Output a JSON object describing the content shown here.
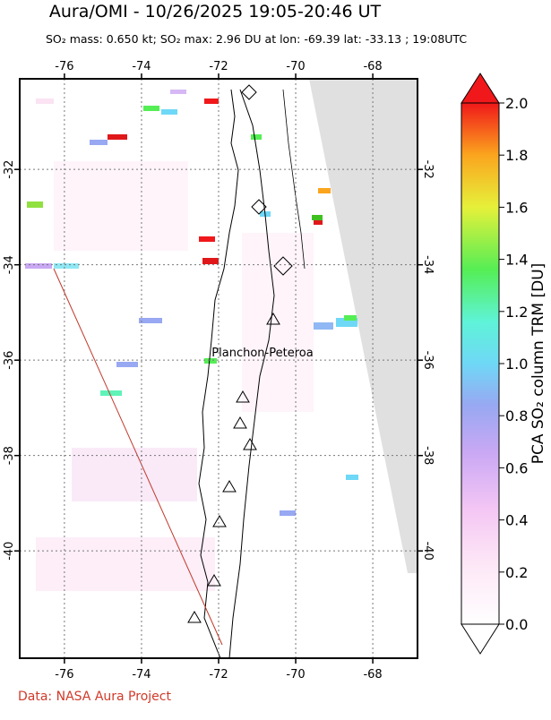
{
  "title": "Aura/OMI - 10/26/2025 19:05-20:46 UT",
  "subtitle": "SO₂ mass: 0.650 kt; SO₂ max: 2.96 DU at lon: -69.39 lat: -33.13 ; 19:08UTC",
  "axes": {
    "xlim": [
      -77.16,
      -66.84
    ],
    "xticks": [
      -76,
      -74,
      -72,
      -70,
      -68
    ],
    "ylim": [
      -42.25,
      -30.1
    ],
    "yticks": [
      -32,
      -34,
      -36,
      -38,
      -40
    ]
  },
  "volcano_label": "Planchon-Peteroa",
  "colorbar": {
    "lim": [
      0,
      2
    ],
    "ticks": [
      {
        "value": 0,
        "label": "0.0"
      },
      0.2,
      0.4,
      0.6,
      0.8,
      {
        "value": 1,
        "label": "1.0"
      },
      1.2,
      1.4,
      1.6,
      1.8,
      {
        "value": 2,
        "label": "2.0"
      }
    ],
    "label": "PCA SO₂ column TRM [DU]"
  },
  "credit": "Data: NASA Aura Project"
}
